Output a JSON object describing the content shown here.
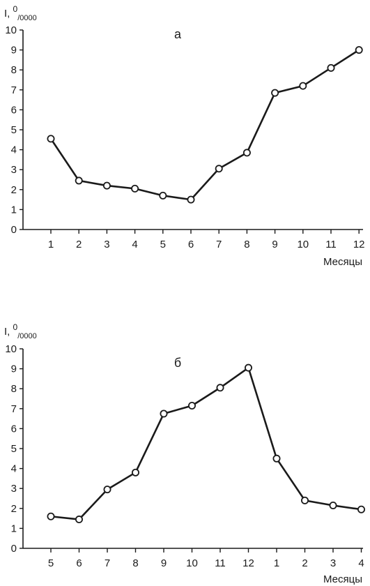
{
  "chart_data": [
    {
      "type": "line",
      "panel_label": "а",
      "ylabel": {
        "main": "I, ",
        "sup": "0",
        "sub": "/0000"
      },
      "xlabel": "Месяцы",
      "ylim": [
        0,
        10
      ],
      "yticks": [
        0,
        1,
        2,
        3,
        4,
        5,
        6,
        7,
        8,
        9,
        10
      ],
      "categories": [
        "1",
        "2",
        "3",
        "4",
        "5",
        "6",
        "7",
        "8",
        "9",
        "10",
        "11",
        "12"
      ],
      "values": [
        4.55,
        2.45,
        2.2,
        2.05,
        1.7,
        1.5,
        3.05,
        3.85,
        6.85,
        7.2,
        8.1,
        9.0
      ],
      "grid": false,
      "line_color": "#1a1a1a",
      "marker_fill": "#ffffff"
    },
    {
      "type": "line",
      "panel_label": "б",
      "ylabel": {
        "main": "I, ",
        "sup": "0",
        "sub": "/0000"
      },
      "xlabel": "Месяцы",
      "ylim": [
        0,
        10
      ],
      "yticks": [
        0,
        1,
        2,
        3,
        4,
        5,
        6,
        7,
        8,
        9,
        10
      ],
      "categories": [
        "5",
        "6",
        "7",
        "8",
        "9",
        "10",
        "11",
        "12",
        "1",
        "2",
        "3",
        "4"
      ],
      "values": [
        1.6,
        1.45,
        2.95,
        3.8,
        6.75,
        7.15,
        8.05,
        9.05,
        4.5,
        2.4,
        2.15,
        1.95
      ],
      "grid": false,
      "line_color": "#1a1a1a",
      "marker_fill": "#ffffff"
    }
  ]
}
